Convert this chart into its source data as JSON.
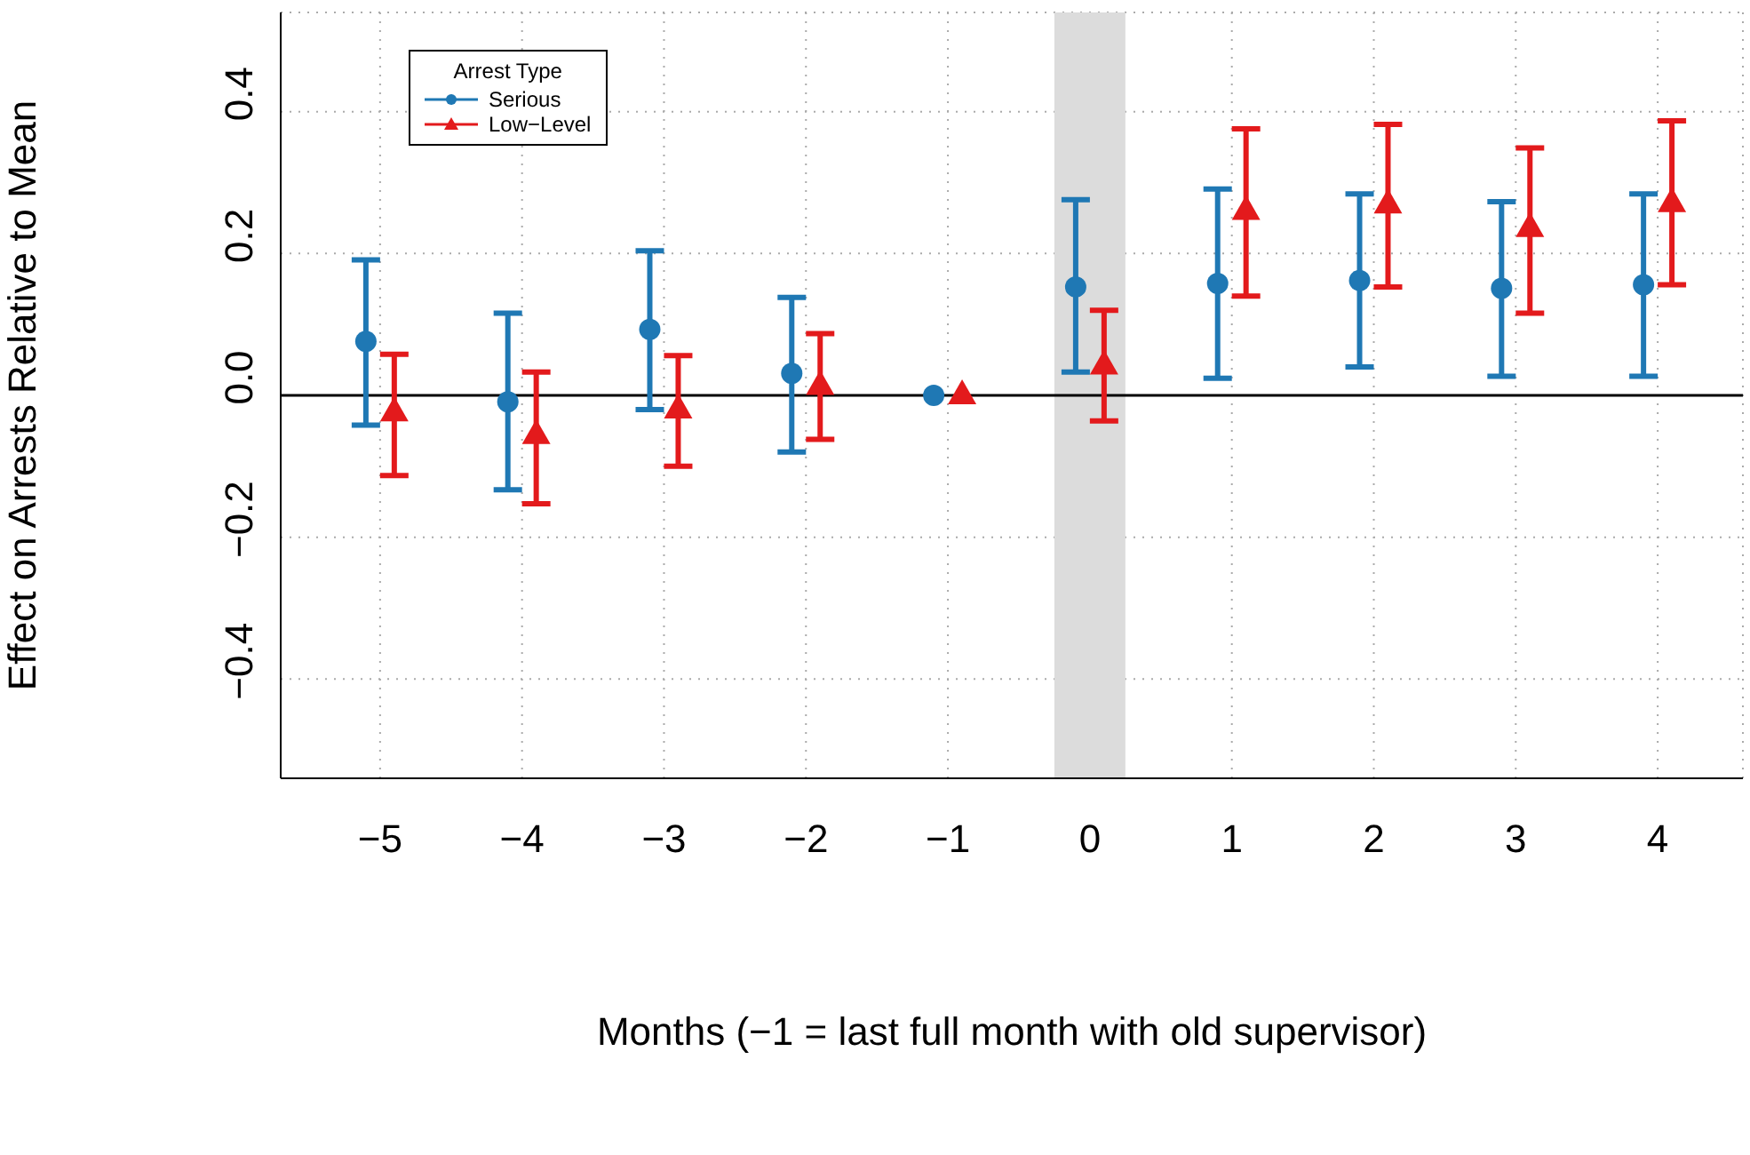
{
  "chart_data": {
    "type": "scatter",
    "xlabel": "Months (−1 = last full month with old supervisor)",
    "ylabel": "Effect on Arrests Relative to Mean",
    "legend_title": "Arrest Type",
    "xlim": [
      -5.7,
      4.6
    ],
    "ylim": [
      -0.54,
      0.54
    ],
    "xticks": [
      {
        "value": -5,
        "label": "−5"
      },
      {
        "value": -4,
        "label": "−4"
      },
      {
        "value": -3,
        "label": "−3"
      },
      {
        "value": -2,
        "label": "−2"
      },
      {
        "value": -1,
        "label": "−1"
      },
      0,
      1,
      2,
      3,
      4
    ],
    "yticks": [
      {
        "value": -0.4,
        "label": "−0.4"
      },
      {
        "value": -0.2,
        "label": "−0.2"
      },
      {
        "value": 0,
        "label": "0.0"
      },
      0.2,
      0.4
    ],
    "grid": true,
    "legend": "top left",
    "bands": [
      {
        "axis": "x",
        "from": -0.25,
        "to": 0.25,
        "color": "#dcdcdc"
      }
    ],
    "ref_lines": [
      {
        "axis": "y",
        "value": 0,
        "color": "#000000",
        "line_style": "solid"
      }
    ],
    "series": [
      {
        "name": "Serious",
        "color": "#1f78b4",
        "marker": "circle",
        "x": [
          -5.1,
          -4.1,
          -3.1,
          -2.1,
          -1.1,
          -0.1,
          0.9,
          1.9,
          2.9,
          3.9
        ],
        "values": [
          0.076,
          -0.009,
          0.093,
          0.031,
          0,
          0.153,
          0.158,
          0.162,
          0.151,
          0.156
        ],
        "errors": [
          [
            -0.042,
            0.191
          ],
          [
            -0.133,
            0.116
          ],
          [
            -0.02,
            0.204
          ],
          [
            -0.08,
            0.138
          ],
          null,
          [
            0.033,
            0.276
          ],
          [
            0.024,
            0.291
          ],
          [
            0.04,
            0.284
          ],
          [
            0.027,
            0.273
          ],
          [
            0.027,
            0.284
          ]
        ]
      },
      {
        "name": "Low−Level",
        "color": "#e31a1c",
        "marker": "triangle",
        "x": [
          -4.9,
          -3.9,
          -2.9,
          -1.9,
          -0.9,
          0.1,
          1.1,
          2.1,
          3.1,
          4.1
        ],
        "values": [
          -0.024,
          -0.056,
          -0.02,
          0.013,
          0,
          0.042,
          0.26,
          0.269,
          0.236,
          0.271
        ],
        "errors": [
          [
            -0.113,
            0.058
          ],
          [
            -0.153,
            0.033
          ],
          [
            -0.1,
            0.056
          ],
          [
            -0.062,
            0.087
          ],
          null,
          [
            -0.036,
            0.12
          ],
          [
            0.14,
            0.376
          ],
          [
            0.153,
            0.382
          ],
          [
            0.116,
            0.349
          ],
          [
            0.156,
            0.387
          ]
        ]
      }
    ]
  }
}
